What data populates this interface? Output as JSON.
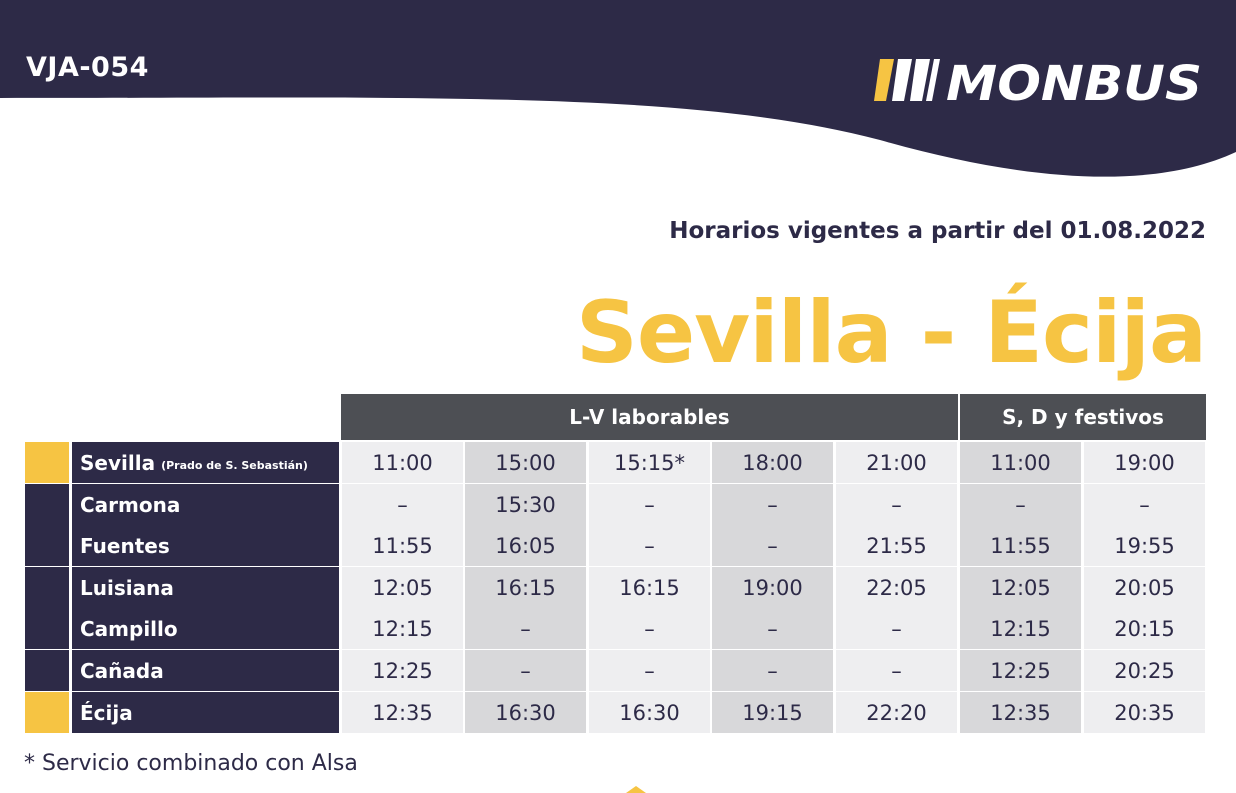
{
  "header": {
    "route_code": "VJA-054",
    "brand": "MONBUS",
    "colors": {
      "navy": "#2d2a47",
      "yellow": "#f6c443",
      "gray": "#4d4f54"
    }
  },
  "effective_date_text": "Horarios vigentes a partir del 01.08.2022",
  "route_title": "Sevilla - Écija",
  "timetable": {
    "groups": [
      {
        "label": "L-V laborables",
        "columns": 5
      },
      {
        "label": "S, D y festivos",
        "columns": 2
      }
    ],
    "stops": [
      {
        "name": "Sevilla",
        "note": "(Prado de S. Sebastián)",
        "terminal": true,
        "times": [
          "11:00",
          "15:00",
          "15:15*",
          "18:00",
          "21:00",
          "11:00",
          "19:00"
        ]
      },
      {
        "name": "Carmona",
        "note": "",
        "terminal": false,
        "times": [
          "–",
          "15:30",
          "–",
          "–",
          "–",
          "–",
          "–"
        ]
      },
      {
        "name": "Fuentes",
        "note": "",
        "terminal": false,
        "times": [
          "11:55",
          "16:05",
          "–",
          "–",
          "21:55",
          "11:55",
          "19:55"
        ]
      },
      {
        "name": "Luisiana",
        "note": "",
        "terminal": false,
        "times": [
          "12:05",
          "16:15",
          "16:15",
          "19:00",
          "22:05",
          "12:05",
          "20:05"
        ]
      },
      {
        "name": "Campillo",
        "note": "",
        "terminal": false,
        "times": [
          "12:15",
          "–",
          "–",
          "–",
          "–",
          "12:15",
          "20:15"
        ]
      },
      {
        "name": "Cañada",
        "note": "",
        "terminal": false,
        "times": [
          "12:25",
          "–",
          "–",
          "–",
          "–",
          "12:25",
          "20:25"
        ]
      },
      {
        "name": "Écija",
        "note": "",
        "terminal": true,
        "times": [
          "12:35",
          "16:30",
          "16:30",
          "19:15",
          "22:20",
          "12:35",
          "20:35"
        ]
      }
    ]
  },
  "footnote": "* Servicio combinado con Alsa"
}
